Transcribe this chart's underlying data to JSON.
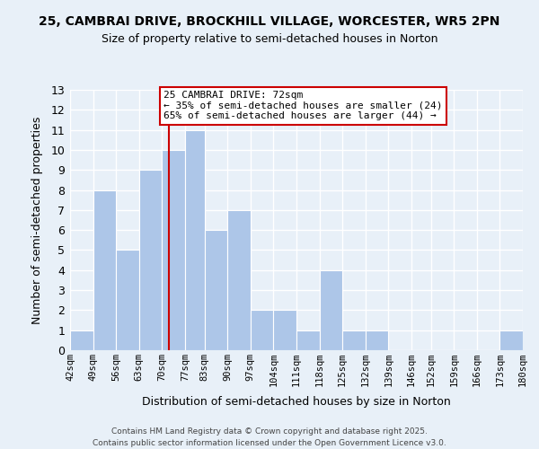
{
  "title1": "25, CAMBRAI DRIVE, BROCKHILL VILLAGE, WORCESTER, WR5 2PN",
  "title2": "Size of property relative to semi-detached houses in Norton",
  "xlabel": "Distribution of semi-detached houses by size in Norton",
  "ylabel": "Number of semi-detached properties",
  "bins": [
    "42sqm",
    "49sqm",
    "56sqm",
    "63sqm",
    "70sqm",
    "77sqm",
    "83sqm",
    "90sqm",
    "97sqm",
    "104sqm",
    "111sqm",
    "118sqm",
    "125sqm",
    "132sqm",
    "139sqm",
    "146sqm",
    "152sqm",
    "159sqm",
    "166sqm",
    "173sqm",
    "180sqm"
  ],
  "bin_edges": [
    42,
    49,
    56,
    63,
    70,
    77,
    83,
    90,
    97,
    104,
    111,
    118,
    125,
    132,
    139,
    146,
    152,
    159,
    166,
    173,
    180
  ],
  "counts": [
    1,
    8,
    5,
    9,
    10,
    11,
    6,
    7,
    2,
    2,
    1,
    4,
    1,
    1,
    0,
    0,
    0,
    0,
    0,
    1
  ],
  "bar_color": "#adc6e8",
  "bar_edgecolor": "#ffffff",
  "background_color": "#e8f0f8",
  "grid_color": "#ffffff",
  "property_line_x": 72,
  "property_line_color": "#cc0000",
  "annotation_line1": "25 CAMBRAI DRIVE: 72sqm",
  "annotation_line2": "← 35% of semi-detached houses are smaller (24)",
  "annotation_line3": "65% of semi-detached houses are larger (44) →",
  "ylim": [
    0,
    13
  ],
  "yticks": [
    0,
    1,
    2,
    3,
    4,
    5,
    6,
    7,
    8,
    9,
    10,
    11,
    12,
    13
  ],
  "footer1": "Contains HM Land Registry data © Crown copyright and database right 2025.",
  "footer2": "Contains public sector information licensed under the Open Government Licence v3.0."
}
